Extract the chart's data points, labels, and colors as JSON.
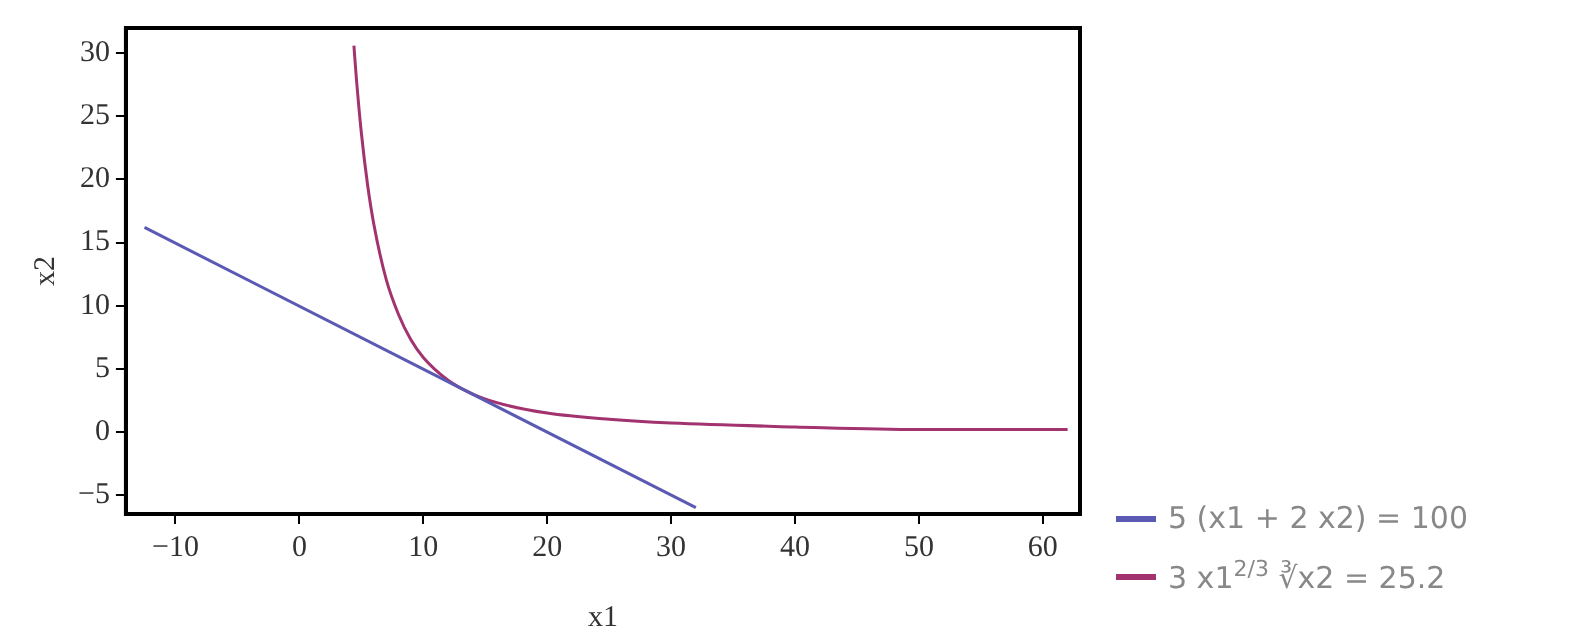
{
  "chart_data": {
    "type": "line",
    "xlabel": "x1",
    "ylabel": "x2",
    "xlim": [
      -14,
      63
    ],
    "ylim": [
      -6.5,
      32
    ],
    "xticks": [
      -10,
      0,
      10,
      20,
      30,
      40,
      50,
      60
    ],
    "yticks": [
      -5,
      0,
      5,
      10,
      15,
      20,
      25,
      30
    ],
    "grid": false,
    "legend": "bottom right",
    "marker": "none",
    "line_style": "solid",
    "series": [
      {
        "name": "5 (x1 + 2 x2) = 100",
        "color": "#5a5ab4",
        "x": [
          -12.5,
          32
        ],
        "values": [
          16.2,
          -6
        ]
      },
      {
        "name": "3 x1$^{2/3}$ ∛x2 = 25.2",
        "color": "#a2336f",
        "x": [
          4.4,
          4.6,
          5,
          5.5,
          6,
          7,
          8,
          9,
          10,
          12,
          14,
          16,
          20,
          25,
          30,
          40,
          50,
          62
        ],
        "values": [
          30.6,
          28,
          23.7,
          19.6,
          16.5,
          12.1,
          9.3,
          7.3,
          5.9,
          4.1,
          3,
          2.3,
          1.5,
          1,
          0.7,
          0.4,
          0.2,
          0.2
        ]
      }
    ]
  }
}
